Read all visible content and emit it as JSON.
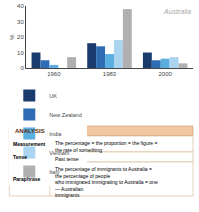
{
  "chart_data": {
    "type": "bar",
    "title": "Australia",
    "categories": [
      "1960",
      "1983",
      "2000"
    ],
    "series": [
      {
        "name": "UK",
        "color": "#1b3a6e",
        "values": [
          10,
          16,
          10
        ]
      },
      {
        "name": "New Zealand",
        "color": "#2e6db4",
        "values": [
          5,
          14,
          5
        ]
      },
      {
        "name": "India",
        "color": "#5baee0",
        "values": [
          2,
          9,
          6
        ]
      },
      {
        "name": "Vietnam",
        "color": "#aad4f0",
        "values": [
          0,
          18,
          7
        ]
      },
      {
        "name": "Italy",
        "color": "#b0b0b0",
        "values": [
          7,
          38,
          3
        ]
      }
    ],
    "ylabel": "%",
    "ylim": [
      0,
      40
    ],
    "yticks": [
      0,
      10,
      20,
      30,
      40
    ],
    "grid": false,
    "legend": "bottom",
    "annotations": [
      "ANALYSIS",
      "Measurement",
      "The percentage = the proportion = the figure = the rate of something",
      "Tense",
      "Past tense",
      "Paraphrase",
      "The percentage of immigrants to Australia = the percentage of people\nwho immigrated immigrating to Australia = one — Australian\nimmigrants"
    ]
  }
}
